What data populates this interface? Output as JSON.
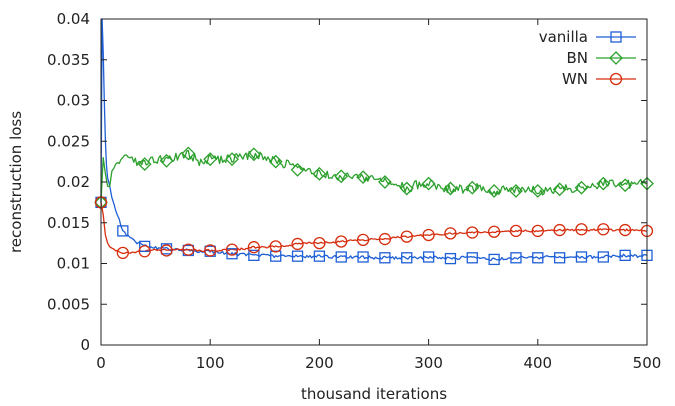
{
  "chart_data": {
    "type": "line",
    "xlabel": "thousand iterations",
    "ylabel": "reconstruction loss",
    "xlim": [
      0,
      500
    ],
    "ylim": [
      0,
      0.04
    ],
    "x_ticks": [
      {
        "value": 0,
        "label": "0"
      },
      {
        "value": 100,
        "label": "100"
      },
      {
        "value": 200,
        "label": "200"
      },
      {
        "value": 300,
        "label": "300"
      },
      {
        "value": 400,
        "label": "400"
      },
      {
        "value": 500,
        "label": "500"
      }
    ],
    "y_ticks": [
      {
        "value": 0,
        "label": "0"
      },
      {
        "value": 0.005,
        "label": "0.005"
      },
      {
        "value": 0.01,
        "label": "0.01"
      },
      {
        "value": 0.015,
        "label": "0.015"
      },
      {
        "value": 0.02,
        "label": "0.02"
      },
      {
        "value": 0.025,
        "label": "0.025"
      },
      {
        "value": 0.03,
        "label": "0.03"
      },
      {
        "value": 0.035,
        "label": "0.035"
      },
      {
        "value": 0.04,
        "label": "0.04"
      }
    ],
    "grid": false,
    "legend_position": "top-right",
    "series": [
      {
        "name": "vanilla",
        "color": "#1f5fd6",
        "marker": "square",
        "points": [
          [
            0,
            0.0175
          ],
          [
            1,
            0.04
          ],
          [
            2,
            0.036
          ],
          [
            3,
            0.03
          ],
          [
            4,
            0.025
          ],
          [
            5,
            0.022
          ],
          [
            6,
            0.0205
          ],
          [
            8,
            0.0195
          ],
          [
            10,
            0.018
          ],
          [
            12,
            0.0172
          ],
          [
            15,
            0.016
          ],
          [
            20,
            0.014
          ],
          [
            25,
            0.0133
          ],
          [
            30,
            0.0128
          ],
          [
            40,
            0.0121
          ],
          [
            50,
            0.0119
          ],
          [
            60,
            0.0118
          ],
          [
            70,
            0.0117
          ],
          [
            80,
            0.0116
          ],
          [
            90,
            0.0115
          ],
          [
            100,
            0.0115
          ],
          [
            110,
            0.0113
          ],
          [
            120,
            0.0112
          ],
          [
            130,
            0.0111
          ],
          [
            140,
            0.011
          ],
          [
            150,
            0.011
          ],
          [
            160,
            0.0109
          ],
          [
            170,
            0.0109
          ],
          [
            180,
            0.0109
          ],
          [
            190,
            0.0108
          ],
          [
            200,
            0.0109
          ],
          [
            210,
            0.0108
          ],
          [
            220,
            0.0108
          ],
          [
            230,
            0.0108
          ],
          [
            240,
            0.0108
          ],
          [
            250,
            0.0107
          ],
          [
            260,
            0.0107
          ],
          [
            270,
            0.0107
          ],
          [
            280,
            0.0107
          ],
          [
            290,
            0.0107
          ],
          [
            300,
            0.0108
          ],
          [
            310,
            0.0107
          ],
          [
            320,
            0.0106
          ],
          [
            330,
            0.0107
          ],
          [
            340,
            0.0107
          ],
          [
            350,
            0.0106
          ],
          [
            360,
            0.0105
          ],
          [
            370,
            0.0106
          ],
          [
            380,
            0.0107
          ],
          [
            390,
            0.0107
          ],
          [
            400,
            0.0107
          ],
          [
            410,
            0.0108
          ],
          [
            420,
            0.0107
          ],
          [
            430,
            0.0108
          ],
          [
            440,
            0.0108
          ],
          [
            450,
            0.0108
          ],
          [
            460,
            0.0108
          ],
          [
            470,
            0.0109
          ],
          [
            480,
            0.011
          ],
          [
            490,
            0.0109
          ],
          [
            500,
            0.011
          ]
        ],
        "markers_at": [
          0,
          20,
          40,
          60,
          80,
          100,
          120,
          140,
          160,
          180,
          200,
          220,
          240,
          260,
          280,
          300,
          320,
          340,
          360,
          380,
          400,
          420,
          440,
          460,
          480,
          500
        ]
      },
      {
        "name": "BN",
        "color": "#2ca02c",
        "marker": "diamond",
        "points": [
          [
            0,
            0.0175
          ],
          [
            2,
            0.023
          ],
          [
            4,
            0.021
          ],
          [
            6,
            0.0195
          ],
          [
            8,
            0.0193
          ],
          [
            10,
            0.021
          ],
          [
            15,
            0.0222
          ],
          [
            20,
            0.023
          ],
          [
            25,
            0.0232
          ],
          [
            30,
            0.0225
          ],
          [
            40,
            0.0222
          ],
          [
            50,
            0.0228
          ],
          [
            60,
            0.0226
          ],
          [
            70,
            0.0232
          ],
          [
            80,
            0.0235
          ],
          [
            90,
            0.0225
          ],
          [
            100,
            0.0228
          ],
          [
            110,
            0.0228
          ],
          [
            120,
            0.0228
          ],
          [
            130,
            0.0232
          ],
          [
            140,
            0.0234
          ],
          [
            150,
            0.023
          ],
          [
            160,
            0.0225
          ],
          [
            170,
            0.0222
          ],
          [
            180,
            0.0215
          ],
          [
            190,
            0.0213
          ],
          [
            200,
            0.021
          ],
          [
            210,
            0.0208
          ],
          [
            220,
            0.0207
          ],
          [
            230,
            0.0205
          ],
          [
            240,
            0.0206
          ],
          [
            250,
            0.0202
          ],
          [
            260,
            0.02
          ],
          [
            270,
            0.0197
          ],
          [
            280,
            0.0192
          ],
          [
            290,
            0.0197
          ],
          [
            300,
            0.0198
          ],
          [
            310,
            0.0193
          ],
          [
            320,
            0.0192
          ],
          [
            330,
            0.0191
          ],
          [
            340,
            0.0193
          ],
          [
            350,
            0.0192
          ],
          [
            360,
            0.0189
          ],
          [
            370,
            0.019
          ],
          [
            380,
            0.0189
          ],
          [
            390,
            0.019
          ],
          [
            400,
            0.0189
          ],
          [
            410,
            0.019
          ],
          [
            420,
            0.0191
          ],
          [
            430,
            0.0192
          ],
          [
            440,
            0.0193
          ],
          [
            450,
            0.0195
          ],
          [
            460,
            0.0198
          ],
          [
            470,
            0.0199
          ],
          [
            480,
            0.0196
          ],
          [
            490,
            0.0199
          ],
          [
            500,
            0.0198
          ]
        ],
        "markers_at": [
          0,
          40,
          60,
          80,
          100,
          120,
          140,
          160,
          180,
          200,
          220,
          240,
          260,
          280,
          300,
          320,
          340,
          360,
          380,
          400,
          420,
          440,
          460,
          480,
          500
        ]
      },
      {
        "name": "WN",
        "color": "#d62d0f",
        "marker": "circle",
        "points": [
          [
            0,
            0.0175
          ],
          [
            2,
            0.016
          ],
          [
            4,
            0.0135
          ],
          [
            6,
            0.0125
          ],
          [
            8,
            0.012
          ],
          [
            10,
            0.0118
          ],
          [
            15,
            0.0115
          ],
          [
            20,
            0.0113
          ],
          [
            30,
            0.0114
          ],
          [
            40,
            0.0115
          ],
          [
            50,
            0.0117
          ],
          [
            60,
            0.0116
          ],
          [
            70,
            0.0117
          ],
          [
            80,
            0.0117
          ],
          [
            90,
            0.0116
          ],
          [
            100,
            0.0116
          ],
          [
            110,
            0.0116
          ],
          [
            120,
            0.0117
          ],
          [
            130,
            0.0118
          ],
          [
            140,
            0.012
          ],
          [
            150,
            0.012
          ],
          [
            160,
            0.0121
          ],
          [
            170,
            0.0122
          ],
          [
            180,
            0.0124
          ],
          [
            190,
            0.0125
          ],
          [
            200,
            0.0125
          ],
          [
            210,
            0.0126
          ],
          [
            220,
            0.0127
          ],
          [
            230,
            0.0128
          ],
          [
            240,
            0.0129
          ],
          [
            250,
            0.013
          ],
          [
            260,
            0.013
          ],
          [
            270,
            0.0132
          ],
          [
            280,
            0.0133
          ],
          [
            290,
            0.0134
          ],
          [
            300,
            0.0135
          ],
          [
            310,
            0.0136
          ],
          [
            320,
            0.0137
          ],
          [
            330,
            0.0137
          ],
          [
            340,
            0.0138
          ],
          [
            350,
            0.0138
          ],
          [
            360,
            0.0139
          ],
          [
            370,
            0.0139
          ],
          [
            380,
            0.014
          ],
          [
            390,
            0.014
          ],
          [
            400,
            0.014
          ],
          [
            410,
            0.0141
          ],
          [
            420,
            0.0141
          ],
          [
            430,
            0.0141
          ],
          [
            440,
            0.0142
          ],
          [
            450,
            0.0141
          ],
          [
            460,
            0.0142
          ],
          [
            470,
            0.0141
          ],
          [
            480,
            0.0141
          ],
          [
            490,
            0.0141
          ],
          [
            500,
            0.014
          ]
        ],
        "markers_at": [
          0,
          20,
          40,
          60,
          80,
          100,
          120,
          140,
          160,
          180,
          200,
          220,
          240,
          260,
          280,
          300,
          320,
          340,
          360,
          380,
          400,
          420,
          440,
          460,
          480,
          500
        ]
      }
    ]
  }
}
